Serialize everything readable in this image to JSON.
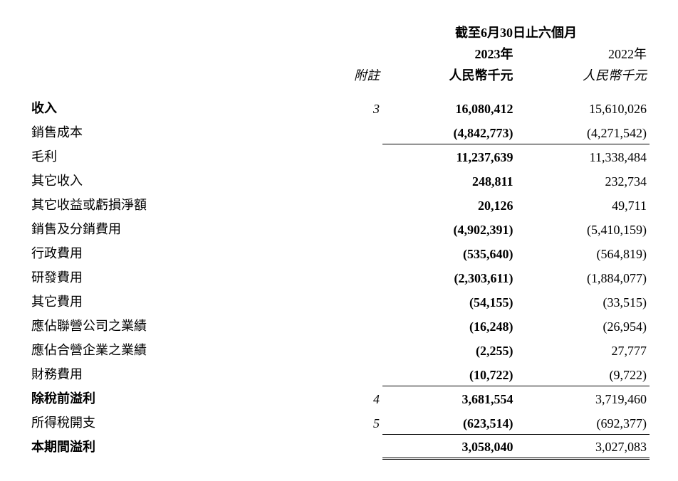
{
  "headers": {
    "period": "截至6月30日止六個月",
    "y2023": "2023年",
    "y2022": "2022年",
    "unit2023": "人民幣千元",
    "unit2022": "人民幣千元",
    "notes": "附註"
  },
  "rows": {
    "revenue": {
      "label": "收入",
      "note": "3",
      "y2023": "16,080,412",
      "y2022": "15,610,026"
    },
    "cogs": {
      "label": "銷售成本",
      "note": "",
      "y2023": "(4,842,773)",
      "y2022": "(4,271,542)"
    },
    "gross": {
      "label": "毛利",
      "note": "",
      "y2023": "11,237,639",
      "y2022": "11,338,484"
    },
    "other_income": {
      "label": "其它收入",
      "note": "",
      "y2023": "248,811",
      "y2022": "232,734"
    },
    "other_gain": {
      "label": "其它收益或虧損淨額",
      "note": "",
      "y2023": "20,126",
      "y2022": "49,711"
    },
    "selling": {
      "label": "銷售及分銷費用",
      "note": "",
      "y2023": "(4,902,391)",
      "y2022": "(5,410,159)"
    },
    "admin": {
      "label": "行政費用",
      "note": "",
      "y2023": "(535,640)",
      "y2022": "(564,819)"
    },
    "rnd": {
      "label": "研發費用",
      "note": "",
      "y2023": "(2,303,611)",
      "y2022": "(1,884,077)"
    },
    "other_exp": {
      "label": "其它費用",
      "note": "",
      "y2023": "(54,155)",
      "y2022": "(33,515)"
    },
    "assoc": {
      "label": "應佔聯營公司之業績",
      "note": "",
      "y2023": "(16,248)",
      "y2022": "(26,954)"
    },
    "jv": {
      "label": "應佔合營企業之業績",
      "note": "",
      "y2023": "(2,255)",
      "y2022": "27,777"
    },
    "finance": {
      "label": "財務費用",
      "note": "",
      "y2023": "(10,722)",
      "y2022": "(9,722)"
    },
    "pbt": {
      "label": "除稅前溢利",
      "note": "4",
      "y2023": "3,681,554",
      "y2022": "3,719,460"
    },
    "tax": {
      "label": "所得稅開支",
      "note": "5",
      "y2023": "(623,514)",
      "y2022": "(692,377)"
    },
    "profit": {
      "label": "本期間溢利",
      "note": "",
      "y2023": "3,058,040",
      "y2022": "3,027,083"
    }
  }
}
